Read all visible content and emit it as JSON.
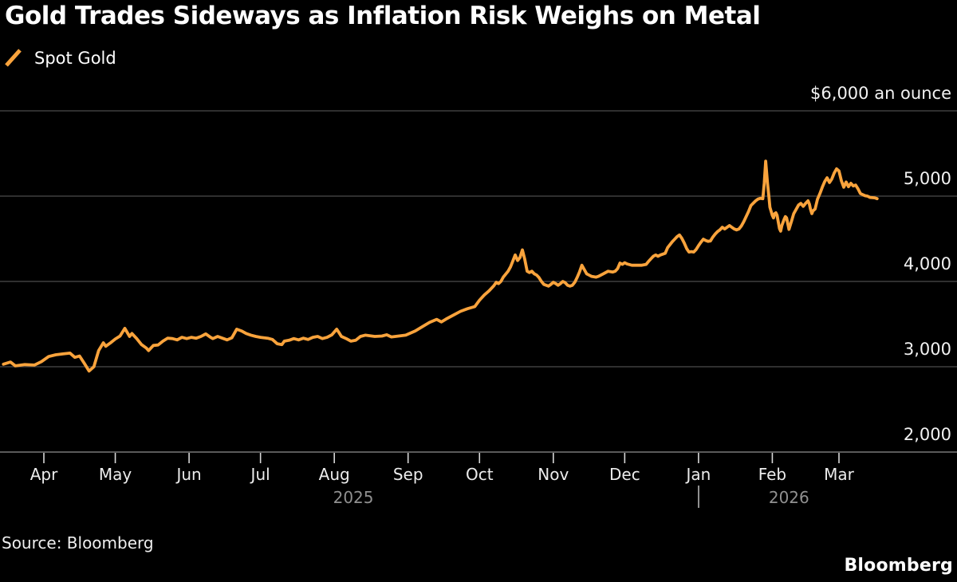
{
  "footer": {
    "source": "Source: Bloomberg",
    "brand": "Bloomberg"
  },
  "colors": {
    "background": "#000000",
    "line": "#F9A33C",
    "grid": "#3f3f3f",
    "axis": "#5a5a5a",
    "tick": "#d8d8d8",
    "text_primary": "#ffffff",
    "text_secondary": "#909090"
  },
  "chart_data": {
    "type": "line",
    "title": "Gold Trades Sideways as Inflation Risk Weighs on Metal",
    "ylabel": "$ an ounce",
    "legend_position": "top-left",
    "grid": "horizontal",
    "y_axis": {
      "min": 2000,
      "max": 6000,
      "ticks": [
        {
          "value": 6000,
          "label": "$6,000 an ounce"
        },
        {
          "value": 5000,
          "label": "5,000"
        },
        {
          "value": 4000,
          "label": "4,000"
        },
        {
          "value": 3000,
          "label": "3,000"
        },
        {
          "value": 2000,
          "label": "2,000"
        }
      ]
    },
    "x_axis": {
      "note": "day 0 = Apr 1 2025; series spans mid-Mar 2025 to mid-Mar 2026",
      "months": [
        {
          "label": "Apr",
          "day": 0
        },
        {
          "label": "May",
          "day": 30
        },
        {
          "label": "Jun",
          "day": 61
        },
        {
          "label": "Jul",
          "day": 91
        },
        {
          "label": "Aug",
          "day": 122
        },
        {
          "label": "Sep",
          "day": 153
        },
        {
          "label": "Oct",
          "day": 183
        },
        {
          "label": "Nov",
          "day": 214
        },
        {
          "label": "Dec",
          "day": 244
        },
        {
          "label": "Jan",
          "day": 275
        },
        {
          "label": "Feb",
          "day": 306
        },
        {
          "label": "Mar",
          "day": 334
        }
      ],
      "years": [
        {
          "label": "2025",
          "day": 130
        },
        {
          "label": "2026",
          "day": 313
        }
      ],
      "year_divider_day": 275
    },
    "series": [
      {
        "name": "Spot Gold",
        "color": "#F9A33C",
        "points": [
          [
            -17,
            3030
          ],
          [
            -14,
            3055
          ],
          [
            -12,
            3010
          ],
          [
            -8,
            3025
          ],
          [
            -4,
            3020
          ],
          [
            -1,
            3060
          ],
          [
            2,
            3120
          ],
          [
            5,
            3140
          ],
          [
            8,
            3150
          ],
          [
            11,
            3160
          ],
          [
            13,
            3110
          ],
          [
            15,
            3125
          ],
          [
            17,
            3040
          ],
          [
            19,
            2950
          ],
          [
            21,
            3000
          ],
          [
            23,
            3190
          ],
          [
            25,
            3280
          ],
          [
            26,
            3240
          ],
          [
            28,
            3280
          ],
          [
            30,
            3325
          ],
          [
            32,
            3360
          ],
          [
            34,
            3450
          ],
          [
            36,
            3355
          ],
          [
            37,
            3390
          ],
          [
            39,
            3330
          ],
          [
            41,
            3260
          ],
          [
            43,
            3220
          ],
          [
            44,
            3190
          ],
          [
            46,
            3250
          ],
          [
            48,
            3255
          ],
          [
            50,
            3300
          ],
          [
            52,
            3335
          ],
          [
            54,
            3330
          ],
          [
            56,
            3315
          ],
          [
            58,
            3345
          ],
          [
            60,
            3330
          ],
          [
            62,
            3345
          ],
          [
            64,
            3335
          ],
          [
            66,
            3355
          ],
          [
            68,
            3385
          ],
          [
            70,
            3345
          ],
          [
            71,
            3330
          ],
          [
            73,
            3355
          ],
          [
            75,
            3335
          ],
          [
            77,
            3315
          ],
          [
            79,
            3340
          ],
          [
            81,
            3440
          ],
          [
            83,
            3420
          ],
          [
            85,
            3390
          ],
          [
            87,
            3370
          ],
          [
            89,
            3355
          ],
          [
            91,
            3345
          ],
          [
            94,
            3335
          ],
          [
            96,
            3320
          ],
          [
            98,
            3270
          ],
          [
            100,
            3260
          ],
          [
            101,
            3300
          ],
          [
            103,
            3310
          ],
          [
            105,
            3330
          ],
          [
            107,
            3315
          ],
          [
            109,
            3335
          ],
          [
            111,
            3320
          ],
          [
            113,
            3345
          ],
          [
            115,
            3355
          ],
          [
            117,
            3330
          ],
          [
            119,
            3345
          ],
          [
            121,
            3375
          ],
          [
            123,
            3440
          ],
          [
            124,
            3400
          ],
          [
            125,
            3355
          ],
          [
            127,
            3330
          ],
          [
            129,
            3300
          ],
          [
            131,
            3310
          ],
          [
            133,
            3355
          ],
          [
            135,
            3370
          ],
          [
            139,
            3355
          ],
          [
            142,
            3360
          ],
          [
            144,
            3375
          ],
          [
            146,
            3350
          ],
          [
            149,
            3360
          ],
          [
            152,
            3370
          ],
          [
            156,
            3420
          ],
          [
            159,
            3470
          ],
          [
            162,
            3520
          ],
          [
            165,
            3555
          ],
          [
            167,
            3525
          ],
          [
            169,
            3560
          ],
          [
            172,
            3605
          ],
          [
            175,
            3650
          ],
          [
            178,
            3680
          ],
          [
            181,
            3705
          ],
          [
            183,
            3780
          ],
          [
            185,
            3840
          ],
          [
            187,
            3890
          ],
          [
            189,
            3950
          ],
          [
            190,
            3990
          ],
          [
            191,
            3975
          ],
          [
            192,
            4000
          ],
          [
            193,
            4050
          ],
          [
            195,
            4120
          ],
          [
            196,
            4170
          ],
          [
            197,
            4240
          ],
          [
            198,
            4310
          ],
          [
            199,
            4245
          ],
          [
            200,
            4280
          ],
          [
            201,
            4370
          ],
          [
            202,
            4260
          ],
          [
            203,
            4120
          ],
          [
            204,
            4105
          ],
          [
            205,
            4120
          ],
          [
            206,
            4090
          ],
          [
            207,
            4075
          ],
          [
            208,
            4045
          ],
          [
            209,
            4000
          ],
          [
            210,
            3965
          ],
          [
            212,
            3945
          ],
          [
            213,
            3965
          ],
          [
            214,
            3990
          ],
          [
            215,
            3975
          ],
          [
            216,
            3955
          ],
          [
            217,
            3975
          ],
          [
            218,
            4000
          ],
          [
            219,
            3985
          ],
          [
            220,
            3955
          ],
          [
            221,
            3945
          ],
          [
            222,
            3955
          ],
          [
            223,
            3990
          ],
          [
            224,
            4045
          ],
          [
            225,
            4110
          ],
          [
            226,
            4190
          ],
          [
            227,
            4140
          ],
          [
            228,
            4090
          ],
          [
            229,
            4075
          ],
          [
            230,
            4060
          ],
          [
            232,
            4050
          ],
          [
            233,
            4060
          ],
          [
            235,
            4090
          ],
          [
            236,
            4105
          ],
          [
            237,
            4120
          ],
          [
            239,
            4110
          ],
          [
            240,
            4120
          ],
          [
            241,
            4150
          ],
          [
            242,
            4215
          ],
          [
            243,
            4200
          ],
          [
            244,
            4220
          ],
          [
            245,
            4205
          ],
          [
            247,
            4190
          ],
          [
            249,
            4190
          ],
          [
            251,
            4190
          ],
          [
            253,
            4200
          ],
          [
            254,
            4235
          ],
          [
            255,
            4265
          ],
          [
            256,
            4295
          ],
          [
            257,
            4310
          ],
          [
            258,
            4295
          ],
          [
            259,
            4310
          ],
          [
            261,
            4330
          ],
          [
            262,
            4395
          ],
          [
            264,
            4465
          ],
          [
            265,
            4495
          ],
          [
            266,
            4525
          ],
          [
            267,
            4545
          ],
          [
            268,
            4505
          ],
          [
            269,
            4450
          ],
          [
            270,
            4385
          ],
          [
            271,
            4345
          ],
          [
            272,
            4350
          ],
          [
            273,
            4345
          ],
          [
            274,
            4375
          ],
          [
            275,
            4420
          ],
          [
            276,
            4460
          ],
          [
            277,
            4495
          ],
          [
            278,
            4480
          ],
          [
            279,
            4470
          ],
          [
            280,
            4475
          ],
          [
            281,
            4520
          ],
          [
            282,
            4555
          ],
          [
            283,
            4585
          ],
          [
            284,
            4605
          ],
          [
            285,
            4635
          ],
          [
            286,
            4615
          ],
          [
            287,
            4635
          ],
          [
            288,
            4655
          ],
          [
            289,
            4635
          ],
          [
            290,
            4615
          ],
          [
            291,
            4605
          ],
          [
            292,
            4615
          ],
          [
            293,
            4650
          ],
          [
            294,
            4700
          ],
          [
            295,
            4760
          ],
          [
            296,
            4820
          ],
          [
            297,
            4890
          ],
          [
            299,
            4945
          ],
          [
            300,
            4965
          ],
          [
            301,
            4975
          ],
          [
            302,
            4970
          ],
          [
            302.6,
            5150
          ],
          [
            303.2,
            5410
          ],
          [
            304,
            5150
          ],
          [
            304.6,
            4990
          ],
          [
            305,
            4870
          ],
          [
            306,
            4775
          ],
          [
            306.5,
            4745
          ],
          [
            307,
            4795
          ],
          [
            307.5,
            4805
          ],
          [
            308,
            4775
          ],
          [
            309,
            4620
          ],
          [
            309.5,
            4590
          ],
          [
            310,
            4655
          ],
          [
            311,
            4730
          ],
          [
            311.5,
            4760
          ],
          [
            312,
            4745
          ],
          [
            312.6,
            4665
          ],
          [
            313,
            4610
          ],
          [
            314,
            4700
          ],
          [
            315,
            4795
          ],
          [
            316,
            4845
          ],
          [
            317,
            4895
          ],
          [
            318,
            4915
          ],
          [
            319,
            4880
          ],
          [
            320,
            4915
          ],
          [
            321,
            4945
          ],
          [
            321.6,
            4905
          ],
          [
            322,
            4850
          ],
          [
            322.6,
            4795
          ],
          [
            323,
            4825
          ],
          [
            324,
            4850
          ],
          [
            325,
            4965
          ],
          [
            326,
            5030
          ],
          [
            327,
            5105
          ],
          [
            328,
            5170
          ],
          [
            329,
            5215
          ],
          [
            330,
            5160
          ],
          [
            331,
            5200
          ],
          [
            332,
            5270
          ],
          [
            333,
            5320
          ],
          [
            334,
            5295
          ],
          [
            335,
            5180
          ],
          [
            336,
            5105
          ],
          [
            337,
            5165
          ],
          [
            338,
            5110
          ],
          [
            339,
            5150
          ],
          [
            340,
            5120
          ],
          [
            341,
            5130
          ],
          [
            342,
            5085
          ],
          [
            343,
            5030
          ],
          [
            345,
            5005
          ],
          [
            346,
            5000
          ],
          [
            347,
            4985
          ],
          [
            349,
            4980
          ],
          [
            350,
            4970
          ]
        ]
      }
    ]
  }
}
